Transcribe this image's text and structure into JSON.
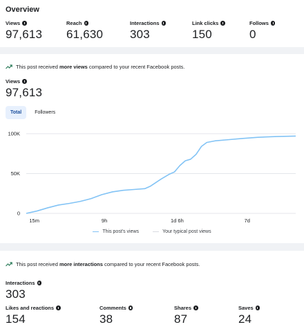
{
  "overview": {
    "title": "Overview",
    "metrics": [
      {
        "label": "Views",
        "value": "97,613"
      },
      {
        "label": "Reach",
        "value": "61,630"
      },
      {
        "label": "Interactions",
        "value": "303"
      },
      {
        "label": "Link clicks",
        "value": "150"
      },
      {
        "label": "Follows",
        "value": "0"
      }
    ]
  },
  "views_card": {
    "insight_prefix": "This post received ",
    "insight_bold": "more views",
    "insight_suffix": " compared to your recent Facebook posts.",
    "metric_label": "Views",
    "metric_value": "97,613",
    "tabs": [
      {
        "label": "Total",
        "active": true
      },
      {
        "label": "Followers",
        "active": false
      }
    ]
  },
  "chart_data": {
    "type": "line",
    "title": "",
    "xlabel": "",
    "ylabel": "",
    "x_tick_labels": [
      "15m",
      "9h",
      "1d 6h",
      "7d"
    ],
    "y_tick_labels": [
      "0",
      "50K",
      "100K"
    ],
    "ylim": [
      0,
      100000
    ],
    "grid": true,
    "legend_position": "bottom",
    "series": [
      {
        "name": "This post's views",
        "color": "#82c3f5",
        "points": [
          [
            0.0,
            0
          ],
          [
            0.04,
            3000
          ],
          [
            0.08,
            7000
          ],
          [
            0.12,
            10500
          ],
          [
            0.16,
            12500
          ],
          [
            0.2,
            15000
          ],
          [
            0.24,
            18500
          ],
          [
            0.28,
            23500
          ],
          [
            0.32,
            27000
          ],
          [
            0.36,
            29000
          ],
          [
            0.4,
            30000
          ],
          [
            0.44,
            31000
          ],
          [
            0.46,
            34000
          ],
          [
            0.5,
            43000
          ],
          [
            0.53,
            49000
          ],
          [
            0.55,
            52000
          ],
          [
            0.57,
            60000
          ],
          [
            0.59,
            66000
          ],
          [
            0.61,
            68000
          ],
          [
            0.63,
            74000
          ],
          [
            0.65,
            84000
          ],
          [
            0.67,
            89000
          ],
          [
            0.7,
            91000
          ],
          [
            0.75,
            92500
          ],
          [
            0.8,
            94000
          ],
          [
            0.86,
            95500
          ],
          [
            0.93,
            96500
          ],
          [
            1.0,
            97000
          ]
        ]
      }
    ],
    "reference_series": {
      "name": "Your typical post views",
      "color": "#d8dbe0"
    }
  },
  "interactions_card": {
    "insight_prefix": "This post received ",
    "insight_bold": "more interactions",
    "insight_suffix": " compared to your recent Facebook posts.",
    "metric_label": "Interactions",
    "metric_value": "303",
    "breakdown": [
      {
        "label": "Likes and reactions",
        "value": "154"
      },
      {
        "label": "Comments",
        "value": "38"
      },
      {
        "label": "Shares",
        "value": "87"
      },
      {
        "label": "Saves",
        "value": "24"
      }
    ]
  }
}
